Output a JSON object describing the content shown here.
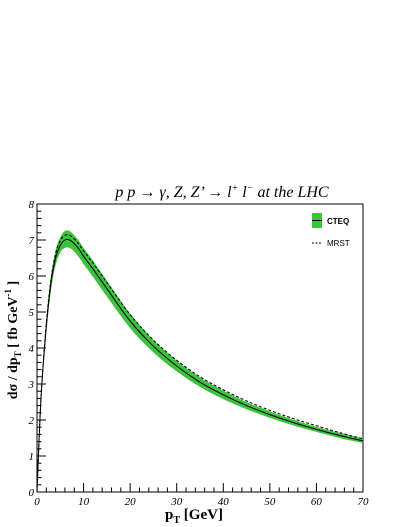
{
  "chart_data": {
    "type": "line",
    "title": {
      "pre": "p p ",
      "arrow1": "→",
      "mid": "γ, Z, Z’ ",
      "arrow2": "→",
      "lep": "l",
      "plus": "+",
      "lep2": " l",
      "minus": "−",
      "post": " at the LHC"
    },
    "xlabel": {
      "main": "p",
      "sub": "T",
      "rest": " [GeV]"
    },
    "ylabel": {
      "pre": "dσ / dp",
      "sub": "T",
      "mid": " [ fb GeV",
      "sup": "-1",
      "post": " ]"
    },
    "xlim": [
      0,
      70
    ],
    "ylim": [
      0,
      8
    ],
    "x_ticks": [
      0,
      10,
      20,
      30,
      40,
      50,
      60,
      70
    ],
    "y_ticks": [
      0,
      1,
      2,
      3,
      4,
      5,
      6,
      7,
      8
    ],
    "legend_position": "top-right",
    "grid": false,
    "colors": {
      "band": "#3cc23c",
      "line": "#000000"
    },
    "series": [
      {
        "name": "CTEQ",
        "style": "solid",
        "x": [
          0,
          0.5,
          1,
          2,
          3,
          4,
          5,
          6,
          7,
          8,
          9,
          10,
          12,
          15,
          20,
          25,
          30,
          35,
          40,
          45,
          50,
          55,
          60,
          65,
          70
        ],
        "y": [
          0,
          1.6,
          2.9,
          4.6,
          5.8,
          6.5,
          6.85,
          7.0,
          7.0,
          6.9,
          6.75,
          6.55,
          6.2,
          5.65,
          4.75,
          4.05,
          3.5,
          3.05,
          2.7,
          2.4,
          2.15,
          1.93,
          1.74,
          1.57,
          1.42
        ],
        "y_low": [
          0,
          1.5,
          2.75,
          4.4,
          5.6,
          6.3,
          6.65,
          6.78,
          6.78,
          6.68,
          6.52,
          6.33,
          5.98,
          5.43,
          4.55,
          3.88,
          3.35,
          2.92,
          2.58,
          2.3,
          2.06,
          1.85,
          1.67,
          1.5,
          1.36
        ],
        "y_high": [
          0,
          1.7,
          3.05,
          4.8,
          6.0,
          6.72,
          7.08,
          7.25,
          7.25,
          7.13,
          6.98,
          6.78,
          6.43,
          5.87,
          4.95,
          4.22,
          3.65,
          3.18,
          2.82,
          2.5,
          2.24,
          2.01,
          1.81,
          1.64,
          1.48
        ]
      },
      {
        "name": "MRST",
        "style": "dashed",
        "x": [
          0,
          0.5,
          1,
          2,
          3,
          4,
          5,
          6,
          7,
          8,
          9,
          10,
          12,
          15,
          20,
          25,
          30,
          35,
          40,
          45,
          50,
          55,
          60,
          65,
          70
        ],
        "y": [
          0,
          1.65,
          2.95,
          4.7,
          5.9,
          6.62,
          6.98,
          7.13,
          7.13,
          7.03,
          6.88,
          6.7,
          6.36,
          5.82,
          4.93,
          4.22,
          3.66,
          3.2,
          2.84,
          2.53,
          2.27,
          2.04,
          1.84,
          1.65,
          1.48
        ]
      }
    ]
  }
}
